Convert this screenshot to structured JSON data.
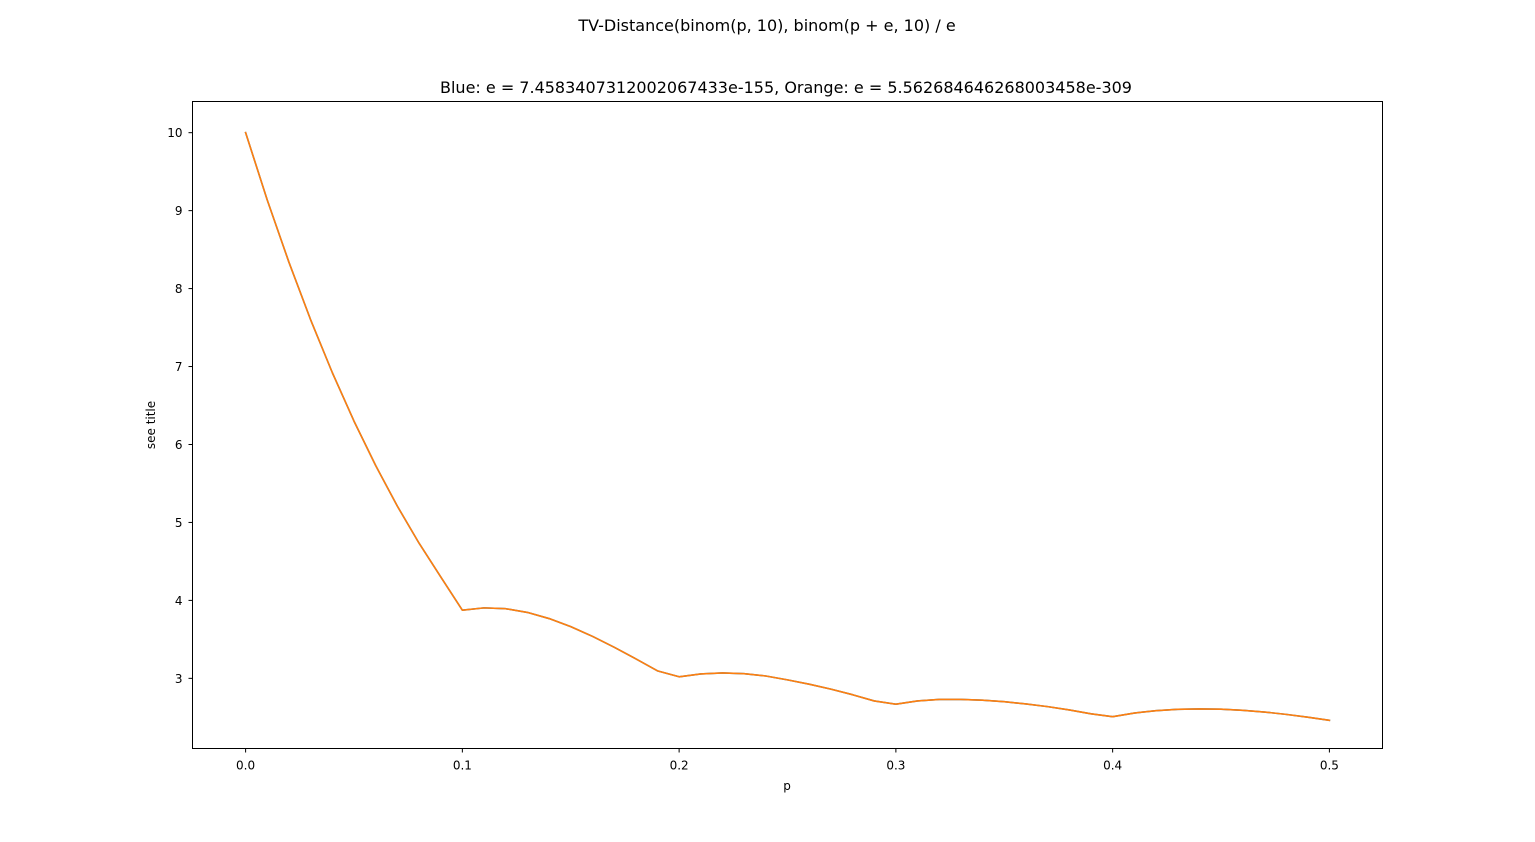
{
  "chart_data": {
    "type": "line",
    "suptitle": "TV-Distance(binom(p, 10), binom(p + e, 10) / e",
    "title": "Blue: e = 7.4583407312002067433e-155, Orange: e = 5.562684646268003458e-309",
    "xlabel": "p",
    "ylabel": "see title",
    "xlim": [
      -0.0245,
      0.5245
    ],
    "ylim": [
      2.1,
      10.4
    ],
    "xticks": [
      0.0,
      0.1,
      0.2,
      0.3,
      0.4,
      0.5
    ],
    "xtick_labels": [
      "0.0",
      "0.1",
      "0.2",
      "0.3",
      "0.4",
      "0.5"
    ],
    "yticks": [
      3,
      4,
      5,
      6,
      7,
      8,
      9,
      10
    ],
    "ytick_labels": [
      "3",
      "4",
      "5",
      "6",
      "7",
      "8",
      "9",
      "10"
    ],
    "grid": false,
    "series": [
      {
        "color": "#1f77b4",
        "x": [
          0.0,
          0.01,
          0.02,
          0.03,
          0.04,
          0.05,
          0.06,
          0.07,
          0.08,
          0.09,
          0.1,
          0.11,
          0.12,
          0.13,
          0.14,
          0.15,
          0.16,
          0.17,
          0.18,
          0.19,
          0.2,
          0.21,
          0.22,
          0.23,
          0.24,
          0.25,
          0.26,
          0.27,
          0.28,
          0.29,
          0.3,
          0.31,
          0.32,
          0.33,
          0.34,
          0.35,
          0.36,
          0.37,
          0.38,
          0.39,
          0.4,
          0.41,
          0.42,
          0.43,
          0.44,
          0.45,
          0.46,
          0.47,
          0.48,
          0.49,
          0.5
        ],
        "y": [
          10.0,
          9.135,
          8.337,
          7.6,
          6.922,
          6.3,
          5.73,
          5.209,
          4.735,
          4.303,
          3.874,
          3.904,
          3.893,
          3.846,
          3.767,
          3.663,
          3.539,
          3.4,
          3.251,
          3.096,
          3.02,
          3.057,
          3.07,
          3.06,
          3.03,
          2.98,
          2.925,
          2.862,
          2.79,
          2.71,
          2.668,
          2.71,
          2.73,
          2.73,
          2.72,
          2.7,
          2.672,
          2.637,
          2.595,
          2.545,
          2.508,
          2.555,
          2.585,
          2.603,
          2.607,
          2.604,
          2.59,
          2.568,
          2.538,
          2.502,
          2.461
        ]
      },
      {
        "color": "#ff7f0e",
        "x": [
          0.0,
          0.01,
          0.02,
          0.03,
          0.04,
          0.05,
          0.06,
          0.07,
          0.08,
          0.09,
          0.1,
          0.11,
          0.12,
          0.13,
          0.14,
          0.15,
          0.16,
          0.17,
          0.18,
          0.19,
          0.2,
          0.21,
          0.22,
          0.23,
          0.24,
          0.25,
          0.26,
          0.27,
          0.28,
          0.29,
          0.3,
          0.31,
          0.32,
          0.33,
          0.34,
          0.35,
          0.36,
          0.37,
          0.38,
          0.39,
          0.4,
          0.41,
          0.42,
          0.43,
          0.44,
          0.45,
          0.46,
          0.47,
          0.48,
          0.49,
          0.5
        ],
        "y": [
          10.0,
          9.135,
          8.337,
          7.6,
          6.922,
          6.3,
          5.73,
          5.209,
          4.735,
          4.303,
          3.874,
          3.904,
          3.893,
          3.846,
          3.767,
          3.663,
          3.539,
          3.4,
          3.251,
          3.096,
          3.02,
          3.057,
          3.07,
          3.06,
          3.03,
          2.98,
          2.925,
          2.862,
          2.79,
          2.71,
          2.668,
          2.71,
          2.73,
          2.73,
          2.72,
          2.7,
          2.672,
          2.637,
          2.595,
          2.545,
          2.508,
          2.555,
          2.585,
          2.603,
          2.607,
          2.604,
          2.59,
          2.568,
          2.538,
          2.502,
          2.461
        ]
      }
    ]
  }
}
